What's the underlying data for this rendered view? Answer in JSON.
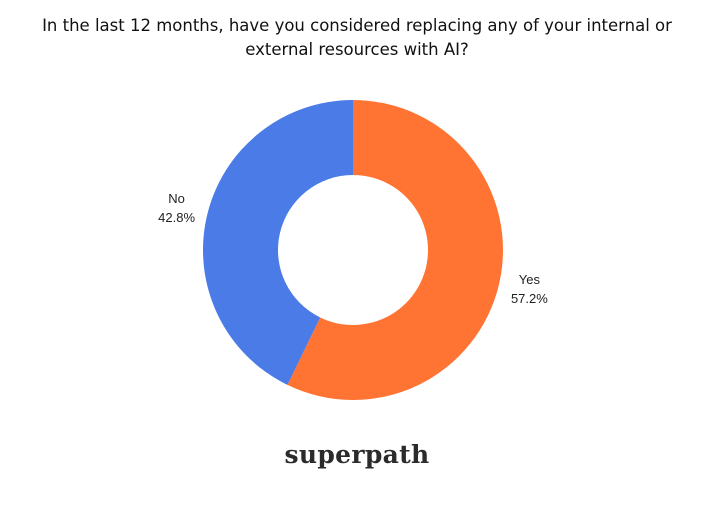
{
  "chart_data": {
    "type": "pie",
    "title": "In the last 12 months, have you considered replacing any of your internal or external resources with AI?",
    "categories": [
      "Yes",
      "No"
    ],
    "values": [
      57.2,
      42.8
    ],
    "value_labels": [
      "57.2%",
      "42.8%"
    ],
    "colors": [
      "#ff7433",
      "#4a7be6"
    ]
  },
  "brand": "superpath"
}
